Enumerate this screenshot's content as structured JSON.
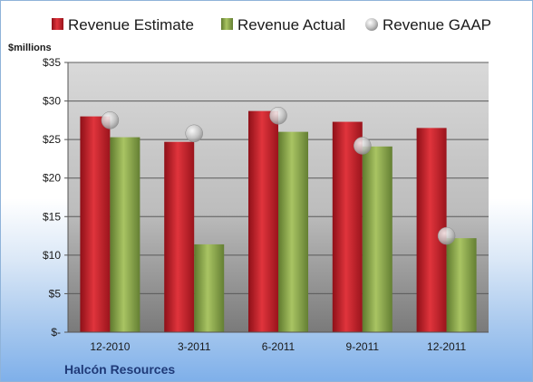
{
  "chart_data": {
    "type": "bar",
    "company": "Halcón Resources",
    "ylabel": "$millions",
    "categories": [
      "12-2010",
      "3-2011",
      "6-2011",
      "9-2011",
      "12-2011"
    ],
    "ylim": [
      0,
      35
    ],
    "yticks": [
      {
        "value": 0,
        "label": "$-"
      },
      {
        "value": 5,
        "label": "$5"
      },
      {
        "value": 10,
        "label": "$10"
      },
      {
        "value": 15,
        "label": "$15"
      },
      {
        "value": 20,
        "label": "$20"
      },
      {
        "value": 25,
        "label": "$25"
      },
      {
        "value": 30,
        "label": "$30"
      },
      {
        "value": 35,
        "label": "$35"
      }
    ],
    "grid": true,
    "legend_position": "top",
    "series": [
      {
        "name": "Revenue Estimate",
        "kind": "bar",
        "color": "#c0202a",
        "values": [
          28.0,
          24.7,
          28.7,
          27.3,
          26.5
        ]
      },
      {
        "name": "Revenue Actual",
        "kind": "bar",
        "color": "#8aa84a",
        "values": [
          25.3,
          11.4,
          26.0,
          24.1,
          12.2
        ]
      },
      {
        "name": "Revenue GAAP",
        "kind": "marker",
        "color": "#c8c8c8",
        "values": [
          27.5,
          25.8,
          28.1,
          24.2,
          12.5
        ]
      }
    ]
  }
}
